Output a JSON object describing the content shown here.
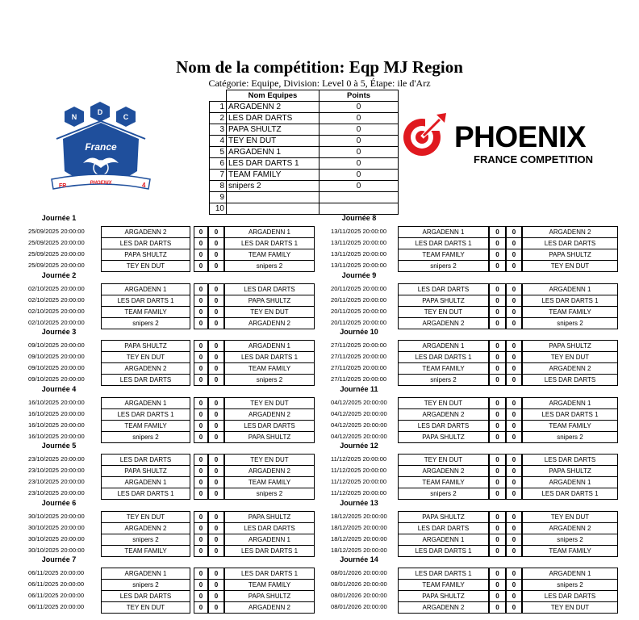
{
  "header": {
    "title": "Nom de la compétition: Eqp MJ Region",
    "subtitle": "Catégorie: Equipe, Division: Level 0 à 5, Étape: ile d'Arz"
  },
  "logos": {
    "left": {
      "text": [
        "N",
        "D",
        "C",
        "France",
        "FR",
        "PHOENIX",
        "4"
      ],
      "color": "#1f4f9c"
    },
    "right": {
      "name": "PHOENIX",
      "tagline": "FRANCE COMPETITION",
      "color": "#e0191f"
    }
  },
  "standings": {
    "headers": [
      "Nom Equipes",
      "Points"
    ],
    "rows": [
      {
        "rank": "1",
        "team": "ARGADENN 2",
        "points": "0"
      },
      {
        "rank": "2",
        "team": "LES DAR DARTS",
        "points": "0"
      },
      {
        "rank": "3",
        "team": "PAPA SHULTZ",
        "points": "0"
      },
      {
        "rank": "4",
        "team": "TEY EN DUT",
        "points": "0"
      },
      {
        "rank": "5",
        "team": "ARGADENN 1",
        "points": "0"
      },
      {
        "rank": "6",
        "team": "LES DAR DARTS 1",
        "points": "0"
      },
      {
        "rank": "7",
        "team": "TEAM FAMILY",
        "points": "0"
      },
      {
        "rank": "8",
        "team": "snipers 2",
        "points": "0"
      },
      {
        "rank": "9",
        "team": "",
        "points": ""
      },
      {
        "rank": "10",
        "team": "",
        "points": ""
      }
    ]
  },
  "rounds": [
    {
      "label": "Journée 1",
      "matches": [
        {
          "date": "25/09/2025 20:00:00",
          "home": "ARGADENN 2",
          "hs": "0",
          "as": "0",
          "away": "ARGADENN 1"
        },
        {
          "date": "25/09/2025 20:00:00",
          "home": "LES DAR DARTS",
          "hs": "0",
          "as": "0",
          "away": "LES DAR DARTS 1"
        },
        {
          "date": "25/09/2025 20:00:00",
          "home": "PAPA SHULTZ",
          "hs": "0",
          "as": "0",
          "away": "TEAM FAMILY"
        },
        {
          "date": "25/09/2025 20:00:00",
          "home": "TEY EN DUT",
          "hs": "0",
          "as": "0",
          "away": "snipers 2"
        }
      ]
    },
    {
      "label": "Journée 2",
      "matches": [
        {
          "date": "02/10/2025 20:00:00",
          "home": "ARGADENN 1",
          "hs": "0",
          "as": "0",
          "away": "LES DAR DARTS"
        },
        {
          "date": "02/10/2025 20:00:00",
          "home": "LES DAR DARTS 1",
          "hs": "0",
          "as": "0",
          "away": "PAPA SHULTZ"
        },
        {
          "date": "02/10/2025 20:00:00",
          "home": "TEAM FAMILY",
          "hs": "0",
          "as": "0",
          "away": "TEY EN DUT"
        },
        {
          "date": "02/10/2025 20:00:00",
          "home": "snipers 2",
          "hs": "0",
          "as": "0",
          "away": "ARGADENN 2"
        }
      ]
    },
    {
      "label": "Journée 3",
      "matches": [
        {
          "date": "09/10/2025 20:00:00",
          "home": "PAPA SHULTZ",
          "hs": "0",
          "as": "0",
          "away": "ARGADENN 1"
        },
        {
          "date": "09/10/2025 20:00:00",
          "home": "TEY EN DUT",
          "hs": "0",
          "as": "0",
          "away": "LES DAR DARTS 1"
        },
        {
          "date": "09/10/2025 20:00:00",
          "home": "ARGADENN 2",
          "hs": "0",
          "as": "0",
          "away": "TEAM FAMILY"
        },
        {
          "date": "09/10/2025 20:00:00",
          "home": "LES DAR DARTS",
          "hs": "0",
          "as": "0",
          "away": "snipers 2"
        }
      ]
    },
    {
      "label": "Journée 4",
      "matches": [
        {
          "date": "16/10/2025 20:00:00",
          "home": "ARGADENN 1",
          "hs": "0",
          "as": "0",
          "away": "TEY EN DUT"
        },
        {
          "date": "16/10/2025 20:00:00",
          "home": "LES DAR DARTS 1",
          "hs": "0",
          "as": "0",
          "away": "ARGADENN 2"
        },
        {
          "date": "16/10/2025 20:00:00",
          "home": "TEAM FAMILY",
          "hs": "0",
          "as": "0",
          "away": "LES DAR DARTS"
        },
        {
          "date": "16/10/2025 20:00:00",
          "home": "snipers 2",
          "hs": "0",
          "as": "0",
          "away": "PAPA SHULTZ"
        }
      ]
    },
    {
      "label": "Journée 5",
      "matches": [
        {
          "date": "23/10/2025 20:00:00",
          "home": "LES DAR DARTS",
          "hs": "0",
          "as": "0",
          "away": "TEY EN DUT"
        },
        {
          "date": "23/10/2025 20:00:00",
          "home": "PAPA SHULTZ",
          "hs": "0",
          "as": "0",
          "away": "ARGADENN 2"
        },
        {
          "date": "23/10/2025 20:00:00",
          "home": "ARGADENN 1",
          "hs": "0",
          "as": "0",
          "away": "TEAM FAMILY"
        },
        {
          "date": "23/10/2025 20:00:00",
          "home": "LES DAR DARTS 1",
          "hs": "0",
          "as": "0",
          "away": "snipers 2"
        }
      ]
    },
    {
      "label": "Journée 6",
      "matches": [
        {
          "date": "30/10/2025 20:00:00",
          "home": "TEY EN DUT",
          "hs": "0",
          "as": "0",
          "away": "PAPA SHULTZ"
        },
        {
          "date": "30/10/2025 20:00:00",
          "home": "ARGADENN 2",
          "hs": "0",
          "as": "0",
          "away": "LES DAR DARTS"
        },
        {
          "date": "30/10/2025 20:00:00",
          "home": "snipers 2",
          "hs": "0",
          "as": "0",
          "away": "ARGADENN 1"
        },
        {
          "date": "30/10/2025 20:00:00",
          "home": "TEAM FAMILY",
          "hs": "0",
          "as": "0",
          "away": "LES DAR DARTS 1"
        }
      ]
    },
    {
      "label": "Journée 7",
      "matches": [
        {
          "date": "06/11/2025 20:00:00",
          "home": "ARGADENN 1",
          "hs": "0",
          "as": "0",
          "away": "LES DAR DARTS 1"
        },
        {
          "date": "06/11/2025 20:00:00",
          "home": "snipers 2",
          "hs": "0",
          "as": "0",
          "away": "TEAM FAMILY"
        },
        {
          "date": "06/11/2025 20:00:00",
          "home": "LES DAR DARTS",
          "hs": "0",
          "as": "0",
          "away": "PAPA SHULTZ"
        },
        {
          "date": "06/11/2025 20:00:00",
          "home": "TEY EN DUT",
          "hs": "0",
          "as": "0",
          "away": "ARGADENN 2"
        }
      ]
    },
    {
      "label": "Journée 8",
      "matches": [
        {
          "date": "13/11/2025 20:00:00",
          "home": "ARGADENN 1",
          "hs": "0",
          "as": "0",
          "away": "ARGADENN 2"
        },
        {
          "date": "13/11/2025 20:00:00",
          "home": "LES DAR DARTS 1",
          "hs": "0",
          "as": "0",
          "away": "LES DAR DARTS"
        },
        {
          "date": "13/11/2025 20:00:00",
          "home": "TEAM FAMILY",
          "hs": "0",
          "as": "0",
          "away": "PAPA SHULTZ"
        },
        {
          "date": "13/11/2025 20:00:00",
          "home": "snipers 2",
          "hs": "0",
          "as": "0",
          "away": "TEY EN DUT"
        }
      ]
    },
    {
      "label": "Journée 9",
      "matches": [
        {
          "date": "20/11/2025 20:00:00",
          "home": "LES DAR DARTS",
          "hs": "0",
          "as": "0",
          "away": "ARGADENN 1"
        },
        {
          "date": "20/11/2025 20:00:00",
          "home": "PAPA SHULTZ",
          "hs": "0",
          "as": "0",
          "away": "LES DAR DARTS 1"
        },
        {
          "date": "20/11/2025 20:00:00",
          "home": "TEY EN DUT",
          "hs": "0",
          "as": "0",
          "away": "TEAM FAMILY"
        },
        {
          "date": "20/11/2025 20:00:00",
          "home": "ARGADENN 2",
          "hs": "0",
          "as": "0",
          "away": "snipers 2"
        }
      ]
    },
    {
      "label": "Journée 10",
      "matches": [
        {
          "date": "27/11/2025 20:00:00",
          "home": "ARGADENN 1",
          "hs": "0",
          "as": "0",
          "away": "PAPA SHULTZ"
        },
        {
          "date": "27/11/2025 20:00:00",
          "home": "LES DAR DARTS 1",
          "hs": "0",
          "as": "0",
          "away": "TEY EN DUT"
        },
        {
          "date": "27/11/2025 20:00:00",
          "home": "TEAM FAMILY",
          "hs": "0",
          "as": "0",
          "away": "ARGADENN 2"
        },
        {
          "date": "27/11/2025 20:00:00",
          "home": "snipers 2",
          "hs": "0",
          "as": "0",
          "away": "LES DAR DARTS"
        }
      ]
    },
    {
      "label": "Journée 11",
      "matches": [
        {
          "date": "04/12/2025 20:00:00",
          "home": "TEY EN DUT",
          "hs": "0",
          "as": "0",
          "away": "ARGADENN 1"
        },
        {
          "date": "04/12/2025 20:00:00",
          "home": "ARGADENN 2",
          "hs": "0",
          "as": "0",
          "away": "LES DAR DARTS 1"
        },
        {
          "date": "04/12/2025 20:00:00",
          "home": "LES DAR DARTS",
          "hs": "0",
          "as": "0",
          "away": "TEAM FAMILY"
        },
        {
          "date": "04/12/2025 20:00:00",
          "home": "PAPA SHULTZ",
          "hs": "0",
          "as": "0",
          "away": "snipers 2"
        }
      ]
    },
    {
      "label": "Journée 12",
      "matches": [
        {
          "date": "11/12/2025 20:00:00",
          "home": "TEY EN DUT",
          "hs": "0",
          "as": "0",
          "away": "LES DAR DARTS"
        },
        {
          "date": "11/12/2025 20:00:00",
          "home": "ARGADENN 2",
          "hs": "0",
          "as": "0",
          "away": "PAPA SHULTZ"
        },
        {
          "date": "11/12/2025 20:00:00",
          "home": "TEAM FAMILY",
          "hs": "0",
          "as": "0",
          "away": "ARGADENN 1"
        },
        {
          "date": "11/12/2025 20:00:00",
          "home": "snipers 2",
          "hs": "0",
          "as": "0",
          "away": "LES DAR DARTS 1"
        }
      ]
    },
    {
      "label": "Journée 13",
      "matches": [
        {
          "date": "18/12/2025 20:00:00",
          "home": "PAPA SHULTZ",
          "hs": "0",
          "as": "0",
          "away": "TEY EN DUT"
        },
        {
          "date": "18/12/2025 20:00:00",
          "home": "LES DAR DARTS",
          "hs": "0",
          "as": "0",
          "away": "ARGADENN 2"
        },
        {
          "date": "18/12/2025 20:00:00",
          "home": "ARGADENN 1",
          "hs": "0",
          "as": "0",
          "away": "snipers 2"
        },
        {
          "date": "18/12/2025 20:00:00",
          "home": "LES DAR DARTS 1",
          "hs": "0",
          "as": "0",
          "away": "TEAM FAMILY"
        }
      ]
    },
    {
      "label": "Journée 14",
      "matches": [
        {
          "date": "08/01/2026 20:00:00",
          "home": "LES DAR DARTS 1",
          "hs": "0",
          "as": "0",
          "away": "ARGADENN 1"
        },
        {
          "date": "08/01/2026 20:00:00",
          "home": "TEAM FAMILY",
          "hs": "0",
          "as": "0",
          "away": "snipers 2"
        },
        {
          "date": "08/01/2026 20:00:00",
          "home": "PAPA SHULTZ",
          "hs": "0",
          "as": "0",
          "away": "LES DAR DARTS"
        },
        {
          "date": "08/01/2026 20:00:00",
          "home": "ARGADENN 2",
          "hs": "0",
          "as": "0",
          "away": "TEY EN DUT"
        }
      ]
    }
  ]
}
